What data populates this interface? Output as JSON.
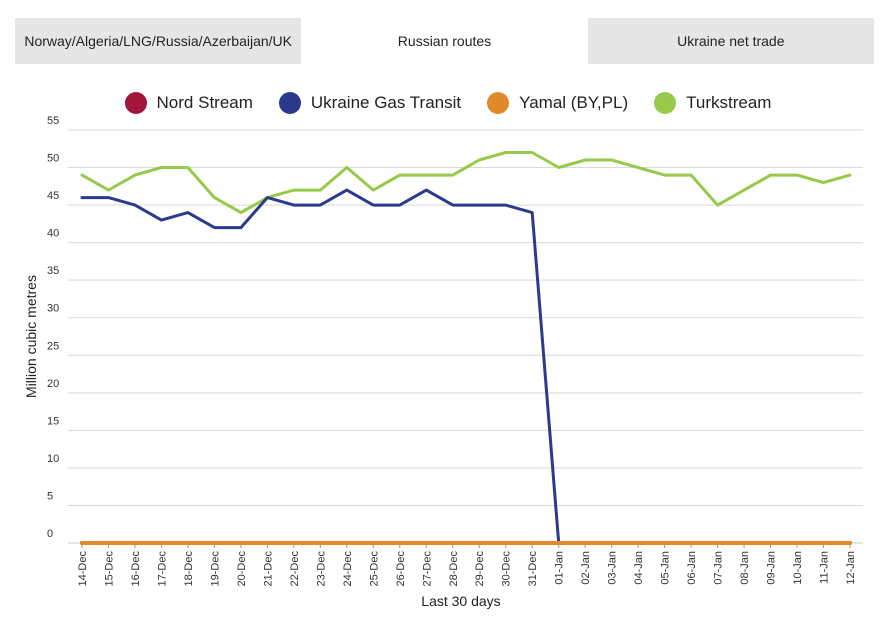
{
  "tabs": [
    {
      "label": "Norway/Algeria/LNG/Russia/Azerbaijan/UK",
      "active": false
    },
    {
      "label": "Russian routes",
      "active": true
    },
    {
      "label": "Ukraine net trade",
      "active": false
    }
  ],
  "chart_data": {
    "type": "line",
    "xlabel": "Last 30 days",
    "ylabel": "Million cubic metres",
    "ylim": [
      0,
      55
    ],
    "yticks": [
      0,
      5,
      10,
      15,
      20,
      25,
      30,
      35,
      40,
      45,
      50,
      55
    ],
    "grid": true,
    "legend_position": "top",
    "x": [
      "14-Dec",
      "15-Dec",
      "16-Dec",
      "17-Dec",
      "18-Dec",
      "19-Dec",
      "20-Dec",
      "21-Dec",
      "22-Dec",
      "23-Dec",
      "24-Dec",
      "25-Dec",
      "26-Dec",
      "27-Dec",
      "28-Dec",
      "29-Dec",
      "30-Dec",
      "31-Dec",
      "01-Jan",
      "02-Jan",
      "03-Jan",
      "04-Jan",
      "05-Jan",
      "06-Jan",
      "07-Jan",
      "08-Jan",
      "09-Jan",
      "10-Jan",
      "11-Jan",
      "12-Jan"
    ],
    "series": [
      {
        "name": "Nord Stream",
        "color": "#a3163c",
        "values": [
          0,
          0,
          0,
          0,
          0,
          0,
          0,
          0,
          0,
          0,
          0,
          0,
          0,
          0,
          0,
          0,
          0,
          0,
          0,
          0,
          0,
          0,
          0,
          0,
          0,
          0,
          0,
          0,
          0,
          0
        ]
      },
      {
        "name": "Ukraine Gas Transit",
        "color": "#2b3a8c",
        "values": [
          46,
          46,
          45,
          43,
          44,
          42,
          42,
          46,
          45,
          45,
          47,
          45,
          45,
          47,
          45,
          45,
          45,
          44,
          0,
          0,
          0,
          0,
          0,
          0,
          0,
          0,
          0,
          0,
          0,
          0
        ]
      },
      {
        "name": "Yamal (BY,PL)",
        "color": "#e08a2c",
        "values": [
          0,
          0,
          0,
          0,
          0,
          0,
          0,
          0,
          0,
          0,
          0,
          0,
          0,
          0,
          0,
          0,
          0,
          0,
          0,
          0,
          0,
          0,
          0,
          0,
          0,
          0,
          0,
          0,
          0,
          0
        ]
      },
      {
        "name": "Turkstream",
        "color": "#97c94a",
        "values": [
          49,
          47,
          49,
          50,
          50,
          46,
          44,
          46,
          47,
          47,
          50,
          47,
          49,
          49,
          49,
          51,
          52,
          52,
          50,
          51,
          51,
          50,
          49,
          49,
          45,
          47,
          49,
          49,
          48,
          49
        ]
      }
    ]
  }
}
